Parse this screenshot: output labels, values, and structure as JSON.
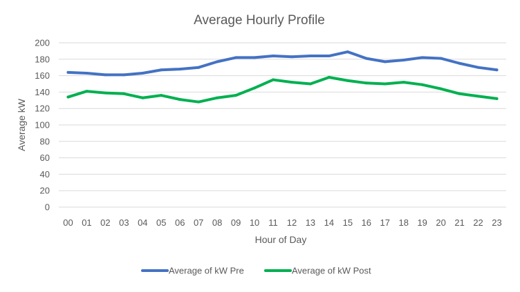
{
  "chart_data": {
    "type": "line",
    "title": "Average Hourly Profile",
    "xlabel": "Hour of Day",
    "ylabel": "Average kW",
    "categories": [
      "00",
      "01",
      "02",
      "03",
      "04",
      "05",
      "06",
      "07",
      "08",
      "09",
      "10",
      "11",
      "12",
      "13",
      "14",
      "15",
      "16",
      "17",
      "18",
      "19",
      "20",
      "21",
      "22",
      "23"
    ],
    "ylim": [
      0,
      200
    ],
    "yticks": [
      0,
      20,
      40,
      60,
      80,
      100,
      120,
      140,
      160,
      180,
      200
    ],
    "grid": true,
    "legend_position": "bottom",
    "series": [
      {
        "name": "Average of kW Pre",
        "color": "#4472c4",
        "values": [
          164,
          163,
          161,
          161,
          163,
          167,
          168,
          170,
          177,
          182,
          182,
          184,
          183,
          184,
          184,
          189,
          181,
          177,
          179,
          182,
          181,
          175,
          170,
          167
        ]
      },
      {
        "name": "Average of kW Post",
        "color": "#00b050",
        "values": [
          134,
          141,
          139,
          138,
          133,
          136,
          131,
          128,
          133,
          136,
          145,
          155,
          152,
          150,
          158,
          154,
          151,
          150,
          152,
          149,
          144,
          138,
          135,
          132
        ]
      }
    ]
  }
}
